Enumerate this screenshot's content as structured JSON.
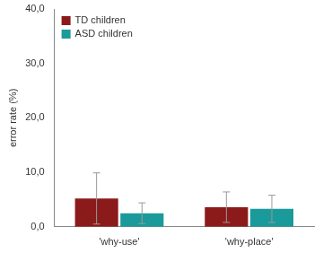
{
  "chart_data": {
    "type": "bar",
    "y_label": "error rate (%)",
    "categories": [
      "'why-use'",
      "'why-place'"
    ],
    "series": [
      {
        "name": "TD children",
        "color": "#8b1a1a",
        "values": [
          5.2,
          3.6
        ],
        "errors": [
          4.7,
          2.8
        ]
      },
      {
        "name": "ASD children",
        "color": "#1a9a9a",
        "values": [
          2.5,
          3.3
        ],
        "errors": [
          1.9,
          2.5
        ]
      }
    ],
    "ylim": [
      0,
      40
    ],
    "yticks": [
      {
        "value": 0,
        "label": "0,0"
      },
      {
        "value": 10,
        "label": "10,0"
      },
      {
        "value": 20,
        "label": "20,0"
      },
      {
        "value": 30,
        "label": "30,0"
      },
      {
        "value": 40,
        "label": "40,0"
      }
    ],
    "grid": false,
    "legend": "upper left"
  }
}
